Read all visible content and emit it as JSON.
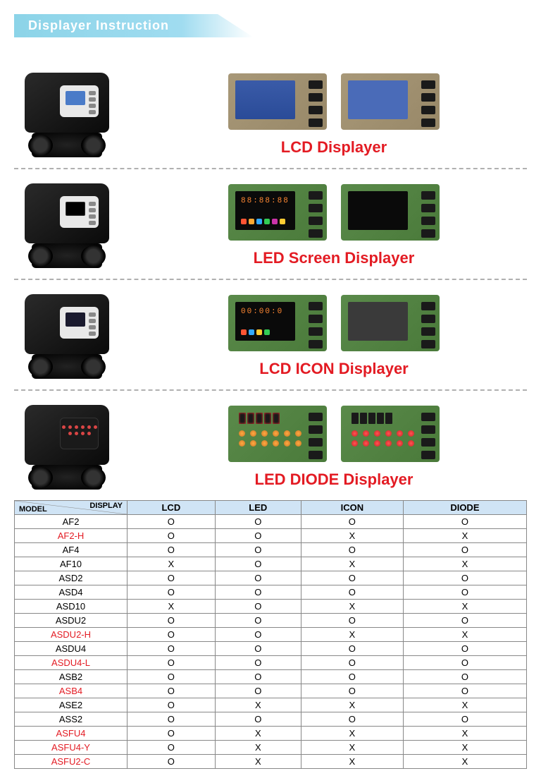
{
  "header": {
    "title": "Displayer Instruction"
  },
  "sections": [
    {
      "title": "LCD Displayer"
    },
    {
      "title": "LED Screen Displayer"
    },
    {
      "title": "LCD ICON Displayer"
    },
    {
      "title": "LED DIODE Displayer"
    }
  ],
  "colors": {
    "accent_red": "#e31b23",
    "banner_bg": "#8cd4e8",
    "table_header_bg": "#d0e4f5",
    "pcb_green": "#5a8a4a",
    "pcb_tan": "#a89878",
    "lcd_blue": "#3a5ba8",
    "divider": "#b0b0b0"
  },
  "table": {
    "corner_display": "DISPLAY",
    "corner_model": "MODEL",
    "columns": [
      "LCD",
      "LED",
      "ICON",
      "DIODE"
    ],
    "rows": [
      {
        "model": "AF2",
        "red": false,
        "cells": [
          "O",
          "O",
          "O",
          "O"
        ]
      },
      {
        "model": "AF2-H",
        "red": true,
        "cells": [
          "O",
          "O",
          "X",
          "X"
        ]
      },
      {
        "model": "AF4",
        "red": false,
        "cells": [
          "O",
          "O",
          "O",
          "O"
        ]
      },
      {
        "model": "AF10",
        "red": false,
        "cells": [
          "X",
          "O",
          "X",
          "X"
        ]
      },
      {
        "model": "ASD2",
        "red": false,
        "cells": [
          "O",
          "O",
          "O",
          "O"
        ]
      },
      {
        "model": "ASD4",
        "red": false,
        "cells": [
          "O",
          "O",
          "O",
          "O"
        ]
      },
      {
        "model": "ASD10",
        "red": false,
        "cells": [
          "X",
          "O",
          "X",
          "X"
        ]
      },
      {
        "model": "ASDU2",
        "red": false,
        "cells": [
          "O",
          "O",
          "O",
          "O"
        ]
      },
      {
        "model": "ASDU2-H",
        "red": true,
        "cells": [
          "O",
          "O",
          "X",
          "X"
        ]
      },
      {
        "model": "ASDU4",
        "red": false,
        "cells": [
          "O",
          "O",
          "O",
          "O"
        ]
      },
      {
        "model": "ASDU4-L",
        "red": true,
        "cells": [
          "O",
          "O",
          "O",
          "O"
        ]
      },
      {
        "model": "ASB2",
        "red": false,
        "cells": [
          "O",
          "O",
          "O",
          "O"
        ]
      },
      {
        "model": "ASB4",
        "red": true,
        "cells": [
          "O",
          "O",
          "O",
          "O"
        ]
      },
      {
        "model": "ASE2",
        "red": false,
        "cells": [
          "O",
          "X",
          "X",
          "X"
        ]
      },
      {
        "model": "ASS2",
        "red": false,
        "cells": [
          "O",
          "O",
          "O",
          "O"
        ]
      },
      {
        "model": "ASFU4",
        "red": true,
        "cells": [
          "O",
          "X",
          "X",
          "X"
        ]
      },
      {
        "model": "ASFU4-Y",
        "red": true,
        "cells": [
          "O",
          "X",
          "X",
          "X"
        ]
      },
      {
        "model": "ASFU2-C",
        "red": true,
        "cells": [
          "O",
          "X",
          "X",
          "X"
        ]
      }
    ]
  }
}
